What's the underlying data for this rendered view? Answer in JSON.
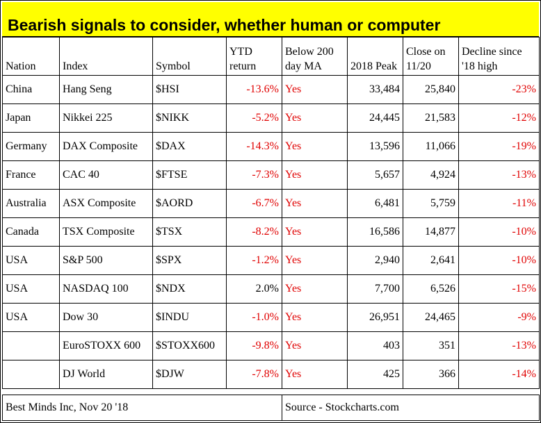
{
  "title": "Bearish signals to consider, whether human or computer",
  "columns": [
    "Nation",
    "Index",
    "Symbol",
    "YTD return",
    "Below 200 day MA",
    "2018 Peak",
    "Close on 11/20",
    "Decline since '18 high"
  ],
  "rows": [
    {
      "nation": "China",
      "index": "Hang Seng",
      "symbol": "$HSI",
      "ytd": "-13.6%",
      "below": "Yes",
      "peak": "33,484",
      "close": "25,840",
      "decline": "-23%"
    },
    {
      "nation": "Japan",
      "index": "Nikkei 225",
      "symbol": "$NIKK",
      "ytd": "-5.2%",
      "below": "Yes",
      "peak": "24,445",
      "close": "21,583",
      "decline": "-12%"
    },
    {
      "nation": "Germany",
      "index": "DAX Composite",
      "symbol": "$DAX",
      "ytd": "-14.3%",
      "below": "Yes",
      "peak": "13,596",
      "close": "11,066",
      "decline": "-19%"
    },
    {
      "nation": "France",
      "index": "CAC 40",
      "symbol": "$FTSE",
      "ytd": "-7.3%",
      "below": "Yes",
      "peak": "5,657",
      "close": "4,924",
      "decline": "-13%"
    },
    {
      "nation": "Australia",
      "index": "ASX Composite",
      "symbol": "$AORD",
      "ytd": "-6.7%",
      "below": "Yes",
      "peak": "6,481",
      "close": "5,759",
      "decline": "-11%"
    },
    {
      "nation": "Canada",
      "index": "TSX Composite",
      "symbol": "$TSX",
      "ytd": "-8.2%",
      "below": "Yes",
      "peak": "16,586",
      "close": "14,877",
      "decline": "-10%"
    },
    {
      "nation": "USA",
      "index": "S&P 500",
      "symbol": "$SPX",
      "ytd": "-1.2%",
      "below": "Yes",
      "peak": "2,940",
      "close": "2,641",
      "decline": "-10%"
    },
    {
      "nation": "USA",
      "index": "NASDAQ 100",
      "symbol": "$NDX",
      "ytd": "2.0%",
      "below": "Yes",
      "peak": "7,700",
      "close": "6,526",
      "decline": "-15%"
    },
    {
      "nation": "USA",
      "index": "Dow 30",
      "symbol": "$INDU",
      "ytd": "-1.0%",
      "below": "Yes",
      "peak": "26,951",
      "close": "24,465",
      "decline": "-9%"
    },
    {
      "nation": "",
      "index": "EuroSTOXX 600",
      "symbol": "$STOXX600",
      "ytd": "-9.8%",
      "below": "Yes",
      "peak": "403",
      "close": "351",
      "decline": "-13%"
    },
    {
      "nation": "",
      "index": "DJ World",
      "symbol": "$DJW",
      "ytd": "-7.8%",
      "below": "Yes",
      "peak": "425",
      "close": "366",
      "decline": "-14%"
    }
  ],
  "footer": {
    "left": "Best Minds Inc, Nov 20 '18",
    "right": "Source - Stockcharts.com"
  },
  "colors": {
    "highlight": "#ffff00",
    "negative": "#e00000"
  }
}
